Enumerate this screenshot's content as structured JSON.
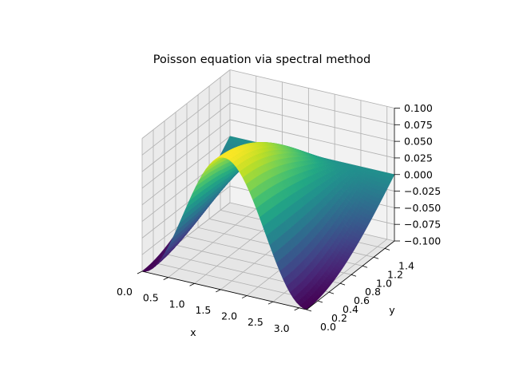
{
  "chart_data": {
    "type": "surface3d",
    "title": "Poisson equation via spectral method",
    "xlabel": "x",
    "ylabel": "y",
    "zlabel": "",
    "xlim": [
      0,
      3.14159
    ],
    "ylim": [
      0,
      1.5708
    ],
    "zlim": [
      -0.1,
      0.1
    ],
    "function": "u(x,y) = -0.1 * cos(2x) * cos(y)  (surface sampled on 50x50 grid)",
    "amplitude": 0.1,
    "x_ticks": [
      "0.0",
      "0.5",
      "1.0",
      "1.5",
      "2.0",
      "2.5",
      "3.0"
    ],
    "x_tick_values": [
      0,
      0.5,
      1.0,
      1.5,
      2.0,
      2.5,
      3.0
    ],
    "y_ticks": [
      "0.0",
      "0.2",
      "0.4",
      "0.6",
      "0.8",
      "1.0",
      "1.2",
      "1.4"
    ],
    "y_tick_values": [
      0,
      0.2,
      0.4,
      0.6,
      0.8,
      1.0,
      1.2,
      1.4
    ],
    "z_ticks": [
      "−0.100",
      "−0.075",
      "−0.050",
      "−0.025",
      "0.000",
      "0.025",
      "0.050",
      "0.075",
      "0.100"
    ],
    "z_tick_values": [
      -0.1,
      -0.075,
      -0.05,
      -0.025,
      0,
      0.025,
      0.05,
      0.075,
      0.1
    ],
    "colormap": "viridis",
    "grid": true,
    "pane_colors": [
      "#f2f2f2",
      "#ebebeb",
      "#e6e6e6"
    ]
  }
}
